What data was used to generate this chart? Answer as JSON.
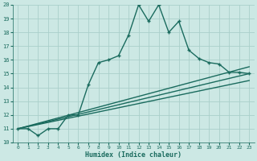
{
  "xlabel": "Humidex (Indice chaleur)",
  "bg_color": "#cce8e4",
  "grid_color": "#aacfca",
  "line_color": "#1a6b5e",
  "xlim": [
    -0.5,
    23.5
  ],
  "ylim": [
    10,
    20
  ],
  "xticks": [
    0,
    1,
    2,
    3,
    4,
    5,
    6,
    7,
    8,
    9,
    10,
    11,
    12,
    13,
    14,
    15,
    16,
    17,
    18,
    19,
    20,
    21,
    22,
    23
  ],
  "yticks": [
    10,
    11,
    12,
    13,
    14,
    15,
    16,
    17,
    18,
    19,
    20
  ],
  "series": [
    {
      "x": [
        0,
        1,
        2,
        3,
        4,
        5,
        6,
        7,
        8,
        9,
        10,
        11,
        12,
        13,
        14,
        15,
        16,
        17,
        18,
        19,
        20,
        21,
        22,
        23
      ],
      "y": [
        11,
        11,
        10.5,
        11,
        11,
        12,
        12,
        14.2,
        15.8,
        16,
        16.3,
        17.8,
        20,
        18.8,
        20,
        18,
        18.8,
        16.7,
        16.1,
        15.8,
        15.7,
        15.1,
        15.1,
        15
      ],
      "marker": "+",
      "ms": 3.5,
      "lw": 1.0
    },
    {
      "x": [
        0,
        23
      ],
      "y": [
        11,
        15.5
      ],
      "marker": null,
      "ms": 0,
      "lw": 1.0
    },
    {
      "x": [
        0,
        23
      ],
      "y": [
        11,
        15.0
      ],
      "marker": null,
      "ms": 0,
      "lw": 1.0
    },
    {
      "x": [
        0,
        23
      ],
      "y": [
        11,
        14.5
      ],
      "marker": null,
      "ms": 0,
      "lw": 1.0
    }
  ]
}
